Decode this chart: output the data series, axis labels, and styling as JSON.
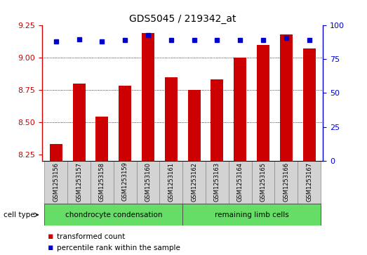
{
  "title": "GDS5045 / 219342_at",
  "samples": [
    "GSM1253156",
    "GSM1253157",
    "GSM1253158",
    "GSM1253159",
    "GSM1253160",
    "GSM1253161",
    "GSM1253162",
    "GSM1253163",
    "GSM1253164",
    "GSM1253165",
    "GSM1253166",
    "GSM1253167"
  ],
  "bar_values": [
    8.33,
    8.8,
    8.54,
    8.78,
    9.19,
    8.85,
    8.75,
    8.83,
    9.0,
    9.1,
    9.18,
    9.07
  ],
  "percentile_values": [
    88,
    90,
    88,
    89,
    93,
    89,
    89,
    89,
    89,
    89,
    91,
    89
  ],
  "bar_color": "#cc0000",
  "dot_color": "#0000cc",
  "ylim_left": [
    8.2,
    9.25
  ],
  "ylim_right": [
    0,
    100
  ],
  "yticks_left": [
    8.25,
    8.5,
    8.75,
    9.0,
    9.25
  ],
  "yticks_right": [
    0,
    25,
    50,
    75,
    100
  ],
  "grid_values": [
    8.5,
    8.75,
    9.0
  ],
  "group1_count": 6,
  "group1_label": "chondrocyte condensation",
  "group2_label": "remaining limb cells",
  "cell_type_label": "cell type",
  "legend1": "transformed count",
  "legend2": "percentile rank within the sample",
  "sample_bg_color": "#d3d3d3",
  "group_color": "#66dd66",
  "bar_width": 0.55,
  "dot_size": 5
}
